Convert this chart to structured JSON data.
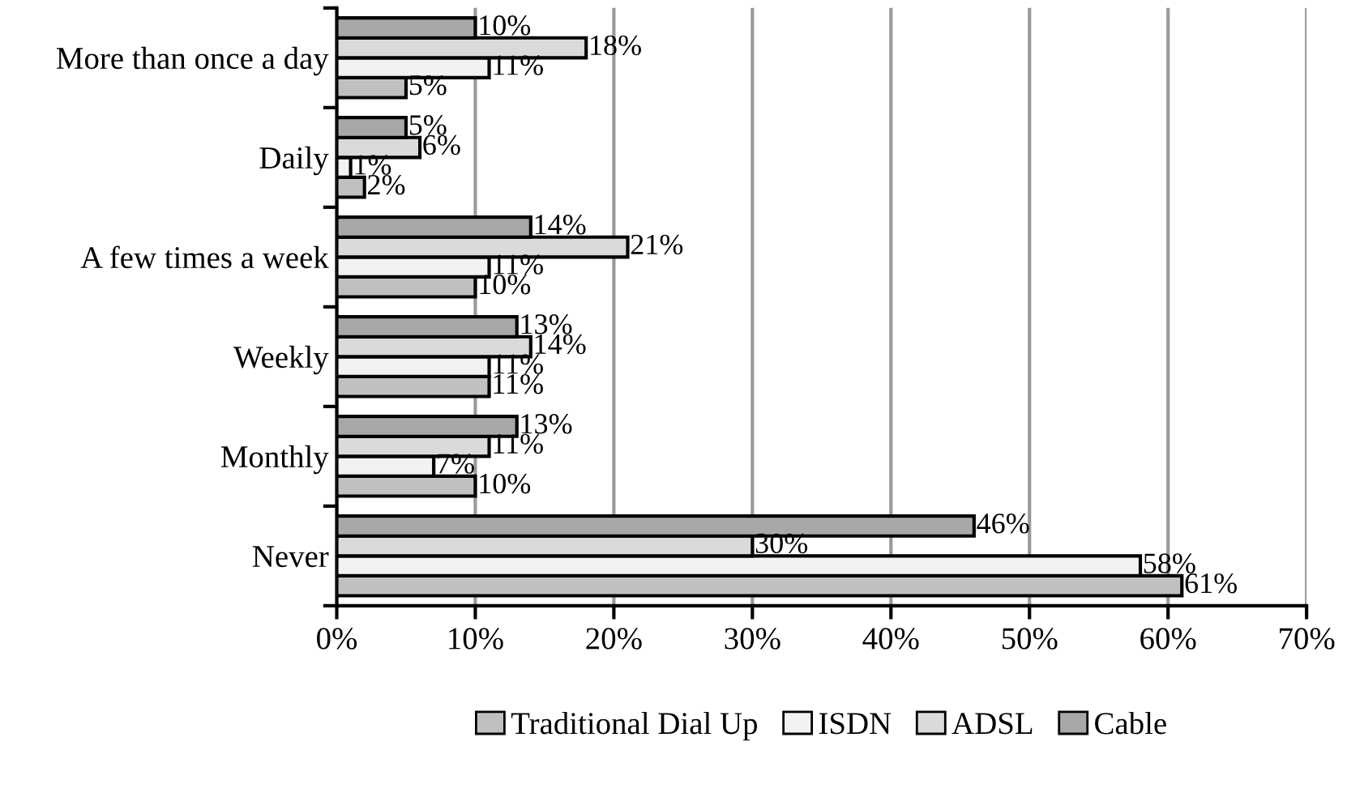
{
  "chart_data": {
    "type": "bar",
    "orientation": "horizontal",
    "categories": [
      "More than once a day",
      "Daily",
      "A few times a week",
      "Weekly",
      "Monthly",
      "Never"
    ],
    "series": [
      {
        "name": "Traditional Dial Up",
        "color": "#c0c0c0",
        "values": [
          5,
          2,
          10,
          11,
          10,
          61
        ],
        "value_labels": [
          "5%",
          "2%",
          "10%",
          "11%",
          "10%",
          "61%"
        ]
      },
      {
        "name": "ISDN",
        "color": "#f2f2f2",
        "values": [
          11,
          1,
          11,
          11,
          7,
          58
        ],
        "value_labels": [
          "11%",
          "1%",
          "11%",
          "11%",
          "7%",
          "58%"
        ]
      },
      {
        "name": "ADSL",
        "color": "#dadada",
        "values": [
          18,
          6,
          21,
          14,
          11,
          30
        ],
        "value_labels": [
          "18%",
          "6%",
          "21%",
          "14%",
          "11%",
          "30%"
        ]
      },
      {
        "name": "Cable",
        "color": "#a8a8a8",
        "values": [
          10,
          5,
          14,
          13,
          13,
          46
        ],
        "value_labels": [
          "10%",
          "5%",
          "14%",
          "13%",
          "13%",
          "46%"
        ]
      }
    ],
    "xlim": [
      0,
      70
    ],
    "xticks": [
      {
        "value": 0,
        "label": "0%"
      },
      {
        "value": 10,
        "label": "10%"
      },
      {
        "value": 20,
        "label": "20%"
      },
      {
        "value": 30,
        "label": "30%"
      },
      {
        "value": 40,
        "label": "40%"
      },
      {
        "value": 50,
        "label": "50%"
      },
      {
        "value": 60,
        "label": "60%"
      },
      {
        "value": 70,
        "label": "70%"
      }
    ],
    "grid": "x",
    "legend": "bottom"
  }
}
